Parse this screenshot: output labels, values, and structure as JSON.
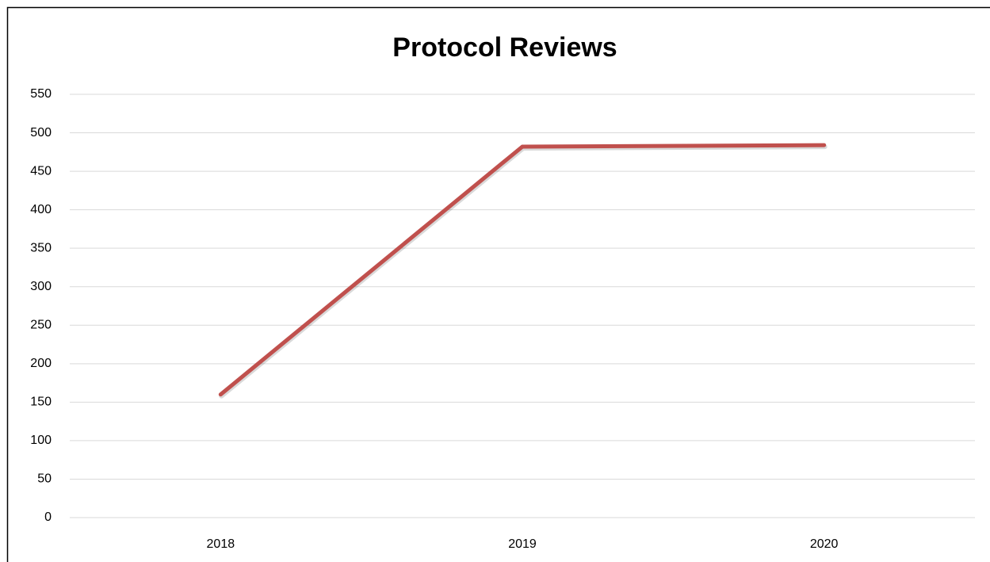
{
  "chart_data": {
    "type": "line",
    "title": "Protocol Reviews",
    "categories": [
      "2018",
      "2019",
      "2020"
    ],
    "series": [
      {
        "name": "Protocol Reviews",
        "color": "#c0504d",
        "values": [
          160,
          482,
          484
        ]
      }
    ],
    "ylim": [
      0,
      550
    ],
    "yticks": [
      0,
      50,
      100,
      150,
      200,
      250,
      300,
      350,
      400,
      450,
      500,
      550
    ],
    "grid": true
  }
}
